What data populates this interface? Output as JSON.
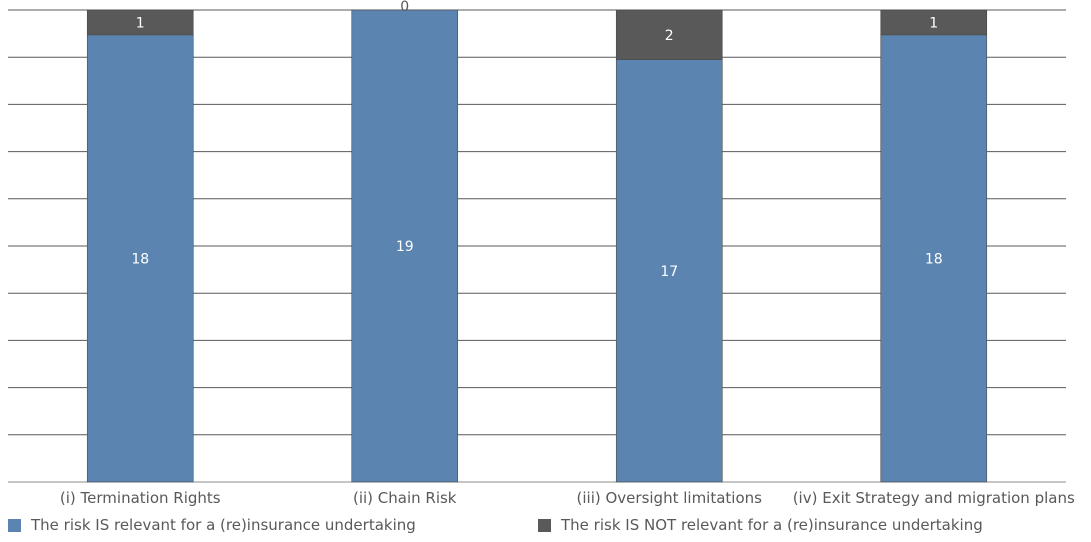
{
  "chart_data": {
    "type": "bar",
    "stacked": true,
    "categories": [
      "(i) Termination Rights",
      "(ii) Chain Risk",
      "(iii) Oversight limitations",
      "(iv) Exit Strategy and migration plans"
    ],
    "series": [
      {
        "name": "The risk IS relevant for a (re)insurance undertaking",
        "values": [
          18,
          19,
          17,
          18
        ],
        "color": "#5b84b1"
      },
      {
        "name": "The risk IS NOT relevant for a (re)insurance undertaking",
        "values": [
          1,
          0,
          2,
          1
        ],
        "color": "#595959"
      }
    ],
    "ylim": [
      0,
      19
    ],
    "grid": true,
    "legend_position": "bottom"
  }
}
